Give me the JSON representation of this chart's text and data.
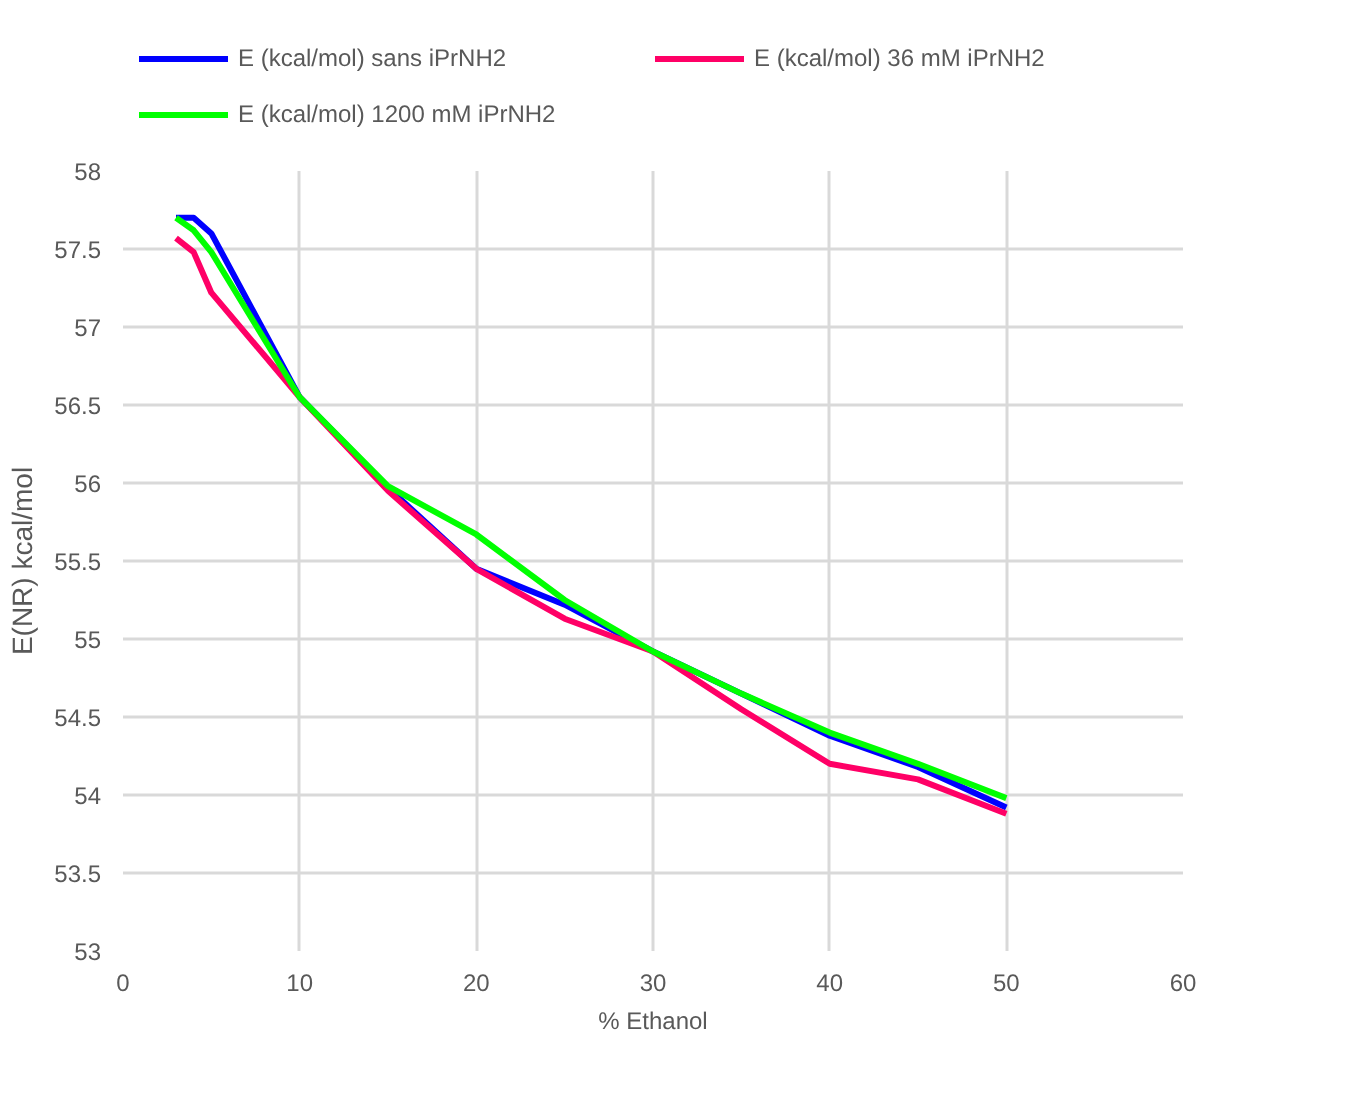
{
  "chart_data": {
    "type": "line",
    "xlabel": "% Ethanol",
    "ylabel": "E(NR) kcal/mol",
    "x": [
      3,
      4,
      5,
      10,
      15,
      20,
      25,
      30,
      35,
      40,
      45,
      50
    ],
    "series": [
      {
        "name": "E (kcal/mol) sans iPrNH2",
        "color": "#0000ff",
        "values": [
          57.7,
          57.7,
          57.6,
          56.55,
          55.97,
          55.45,
          55.22,
          54.92,
          54.65,
          54.38,
          54.18,
          53.92
        ]
      },
      {
        "name": "E (kcal/mol) 36 mM iPrNH2",
        "color": "#ff0066",
        "values": [
          57.57,
          57.48,
          57.22,
          56.55,
          55.95,
          55.45,
          55.13,
          54.92,
          54.55,
          54.2,
          54.1,
          53.88
        ]
      },
      {
        "name": "E (kcal/mol) 1200 mM iPrNH2",
        "color": "#00ff00",
        "values": [
          57.7,
          57.62,
          57.48,
          56.55,
          55.98,
          55.67,
          55.25,
          54.92,
          54.65,
          54.4,
          54.2,
          53.98
        ]
      }
    ],
    "xlim": [
      0,
      60
    ],
    "xticks": [
      0,
      10,
      20,
      30,
      40,
      50,
      60
    ],
    "ylim": [
      53,
      58
    ],
    "yticks": [
      53,
      53.5,
      54,
      54.5,
      55,
      55.5,
      56,
      56.5,
      57,
      57.5,
      58
    ],
    "grid": true,
    "legend": "top",
    "marker": "none",
    "line_style": "solid"
  }
}
